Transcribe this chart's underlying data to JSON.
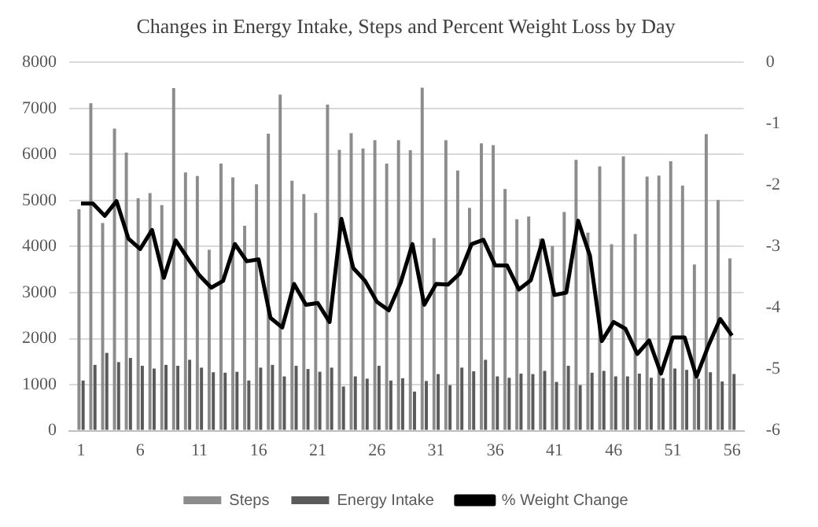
{
  "chart_data": {
    "type": "bar",
    "title": "Changes in Energy Intake, Steps and Percent Weight Loss by Day",
    "x": [
      1,
      2,
      3,
      4,
      5,
      6,
      7,
      8,
      9,
      10,
      11,
      12,
      13,
      14,
      15,
      16,
      17,
      18,
      19,
      20,
      21,
      22,
      23,
      24,
      25,
      26,
      27,
      28,
      29,
      30,
      31,
      32,
      33,
      34,
      35,
      36,
      37,
      38,
      39,
      40,
      41,
      42,
      43,
      44,
      45,
      46,
      47,
      48,
      49,
      50,
      51,
      52,
      53,
      54,
      55,
      56
    ],
    "xlim": [
      0,
      57
    ],
    "xticks": [
      1,
      6,
      11,
      16,
      21,
      26,
      31,
      36,
      41,
      46,
      51,
      56
    ],
    "series": [
      {
        "name": "Steps",
        "color": "#8c8c8c",
        "values": [
          4810,
          7110,
          4510,
          6560,
          6040,
          5050,
          5160,
          4900,
          7440,
          5610,
          5530,
          3930,
          5800,
          5500,
          4450,
          5350,
          6450,
          7300,
          5430,
          5140,
          4730,
          7080,
          6100,
          6460,
          6130,
          6310,
          5800,
          6310,
          6090,
          7450,
          4180,
          6310,
          5650,
          4840,
          6240,
          6200,
          5250,
          4590,
          4650,
          4170,
          4010,
          4750,
          5880,
          4300,
          5740,
          4050,
          5960,
          4270,
          5520,
          5540,
          5850,
          5320,
          3610,
          6440,
          5010,
          3740
        ]
      },
      {
        "name": "Energy Intake",
        "color": "#5a5a5a",
        "values": [
          1090,
          1430,
          1690,
          1490,
          1580,
          1410,
          1350,
          1430,
          1410,
          1540,
          1370,
          1270,
          1260,
          1280,
          1090,
          1370,
          1430,
          1180,
          1410,
          1340,
          1280,
          1370,
          960,
          1180,
          1130,
          1410,
          1090,
          1140,
          850,
          1080,
          1230,
          990,
          1370,
          1290,
          1540,
          1180,
          1150,
          1240,
          1230,
          1300,
          1060,
          1410,
          990,
          1260,
          1300,
          1180,
          1180,
          1240,
          1150,
          1140,
          1350,
          1320,
          1130,
          1270,
          1070,
          1230
        ]
      },
      {
        "name": "% Weight Change",
        "type": "line",
        "axis": "y2",
        "color": "#000000",
        "values": [
          -2.3,
          -2.3,
          -2.5,
          -2.26,
          -2.87,
          -3.04,
          -2.73,
          -3.51,
          -2.9,
          -3.19,
          -3.47,
          -3.67,
          -3.56,
          -2.96,
          -3.24,
          -3.21,
          -4.16,
          -4.32,
          -3.61,
          -3.95,
          -3.92,
          -4.23,
          -2.55,
          -3.35,
          -3.56,
          -3.9,
          -4.04,
          -3.59,
          -2.96,
          -3.95,
          -3.61,
          -3.62,
          -3.44,
          -2.96,
          -2.89,
          -3.31,
          -3.31,
          -3.7,
          -3.55,
          -2.9,
          -3.79,
          -3.75,
          -2.58,
          -3.15,
          -4.54,
          -4.23,
          -4.34,
          -4.75,
          -4.53,
          -5.07,
          -4.48,
          -4.48,
          -5.12,
          -4.62,
          -4.18,
          -4.45
        ]
      }
    ],
    "ylim": [
      0,
      8000
    ],
    "yticks": [
      0,
      1000,
      2000,
      3000,
      4000,
      5000,
      6000,
      7000,
      8000
    ],
    "y2lim": [
      -6,
      0
    ],
    "y2ticks": [
      0,
      -1,
      -2,
      -3,
      -4,
      -5,
      -6
    ],
    "grid": "y",
    "legend": "bottom",
    "marker": "none",
    "line_style": "solid"
  }
}
